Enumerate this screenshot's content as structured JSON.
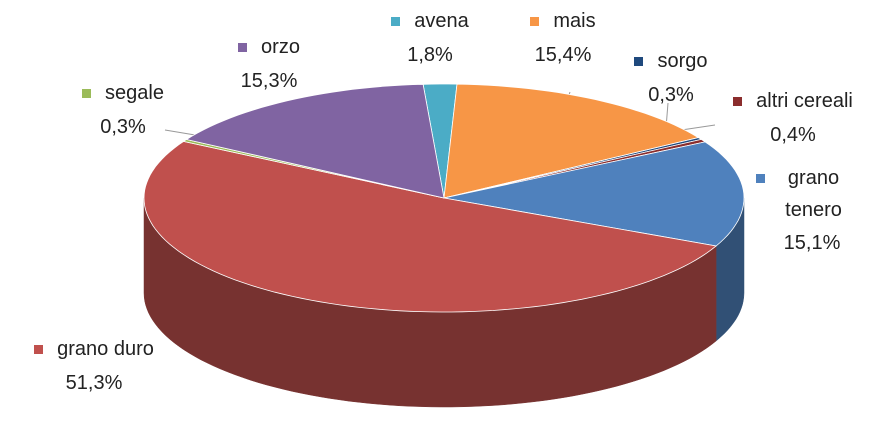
{
  "chart_data": {
    "type": "pie",
    "categories": [
      "avena",
      "mais",
      "sorgo",
      "altri cereali",
      "grano tenero",
      "grano duro",
      "segale",
      "orzo"
    ],
    "values": [
      1.8,
      15.4,
      0.3,
      0.4,
      15.1,
      51.3,
      0.3,
      15.3
    ],
    "value_labels": [
      "1,8%",
      "15,4%",
      "0,3%",
      "0,4%",
      "15,1%",
      "51,3%",
      "0,3%",
      "15,3%"
    ],
    "colors": [
      "#4bacc6",
      "#f79646",
      "#1f497d",
      "#8b2d2d",
      "#4f81bd",
      "#c0504d",
      "#9bbb59",
      "#8064a2"
    ]
  }
}
